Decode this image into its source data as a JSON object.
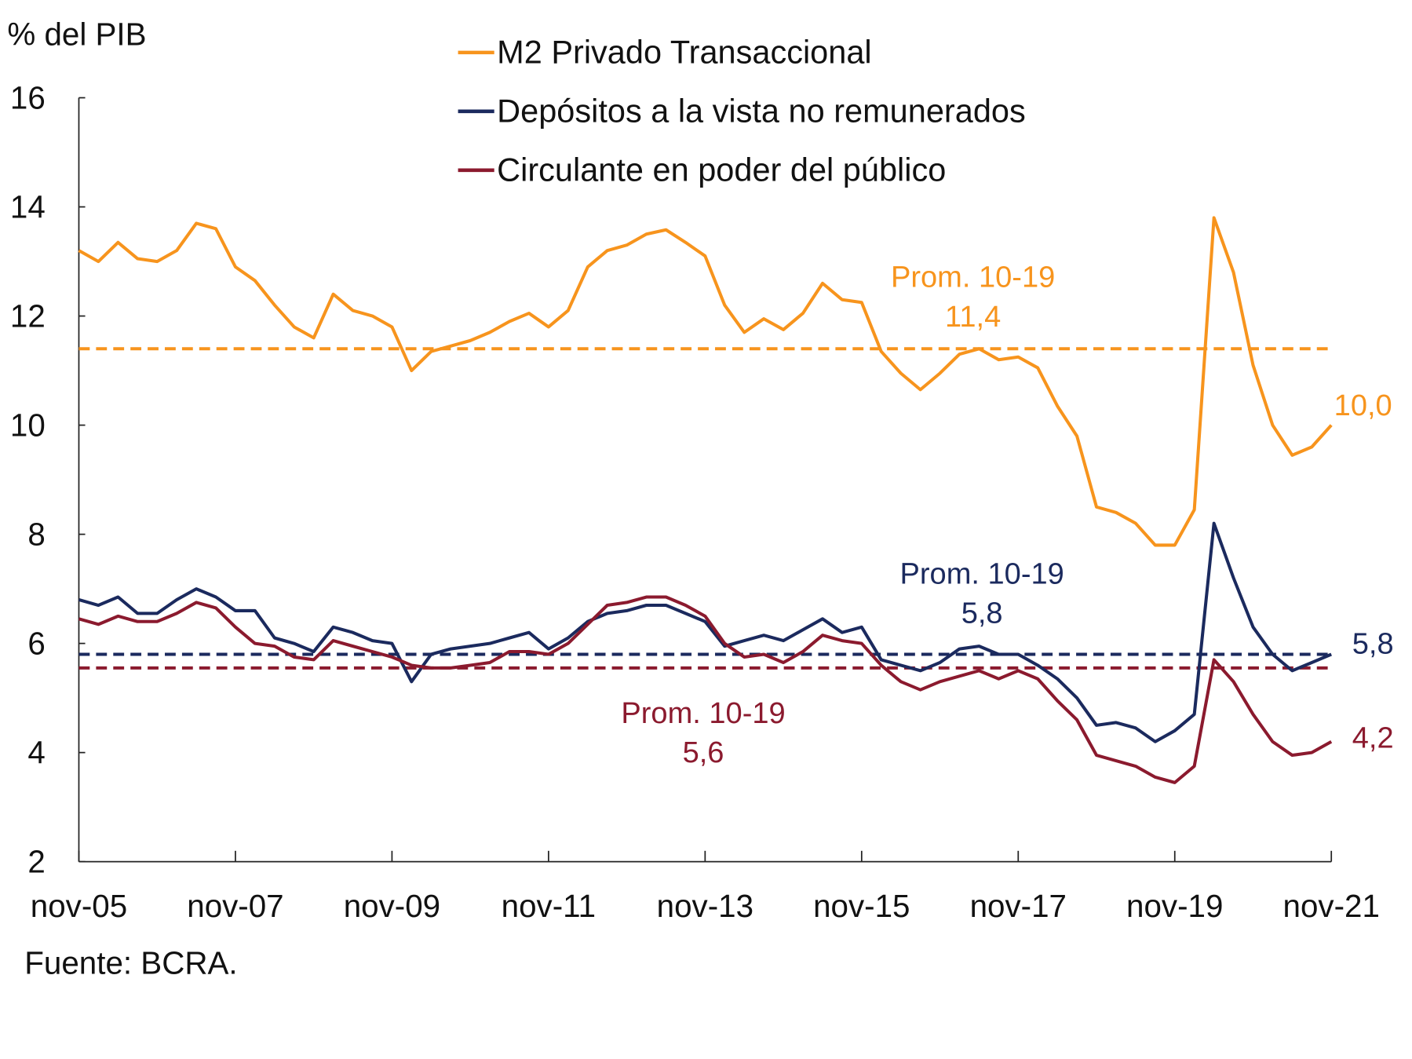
{
  "chart_data": {
    "type": "line",
    "ylabel": "% del PIB",
    "ylim": [
      2,
      16
    ],
    "yticks": [
      "2",
      "4",
      "6",
      "8",
      "10",
      "12",
      "14",
      "16"
    ],
    "xticks": [
      "nov-05",
      "nov-07",
      "nov-09",
      "nov-11",
      "nov-13",
      "nov-15",
      "nov-17",
      "nov-19",
      "nov-21"
    ],
    "xlim": [
      "2005-11",
      "2021-11"
    ],
    "grid": false,
    "legend_position": "top",
    "source": "Fuente: BCRA.",
    "x": [
      "2005-11",
      "2006-02",
      "2006-05",
      "2006-08",
      "2006-11",
      "2007-02",
      "2007-05",
      "2007-08",
      "2007-11",
      "2008-02",
      "2008-05",
      "2008-08",
      "2008-11",
      "2009-02",
      "2009-05",
      "2009-08",
      "2009-11",
      "2010-02",
      "2010-05",
      "2010-08",
      "2010-11",
      "2011-02",
      "2011-05",
      "2011-08",
      "2011-11",
      "2012-02",
      "2012-05",
      "2012-08",
      "2012-11",
      "2013-02",
      "2013-05",
      "2013-08",
      "2013-11",
      "2014-02",
      "2014-05",
      "2014-08",
      "2014-11",
      "2015-02",
      "2015-05",
      "2015-08",
      "2015-11",
      "2016-02",
      "2016-05",
      "2016-08",
      "2016-11",
      "2017-02",
      "2017-05",
      "2017-08",
      "2017-11",
      "2018-02",
      "2018-05",
      "2018-08",
      "2018-11",
      "2019-02",
      "2019-05",
      "2019-08",
      "2019-11",
      "2020-02",
      "2020-05",
      "2020-08",
      "2020-11",
      "2021-02",
      "2021-05",
      "2021-08",
      "2021-11"
    ],
    "series": [
      {
        "name": "M2 Privado Transaccional",
        "color": "#F7941D",
        "end_label": "10,0",
        "values": [
          13.2,
          13.0,
          13.35,
          13.05,
          13.0,
          13.2,
          13.7,
          13.6,
          12.9,
          12.65,
          12.2,
          11.8,
          11.6,
          12.4,
          12.1,
          12.0,
          11.8,
          11.0,
          11.35,
          11.45,
          11.55,
          11.7,
          11.9,
          12.05,
          11.8,
          12.1,
          12.9,
          13.2,
          13.3,
          13.5,
          13.58,
          13.35,
          13.1,
          12.2,
          11.7,
          11.95,
          11.75,
          12.05,
          12.6,
          12.3,
          12.25,
          11.35,
          10.95,
          10.65,
          10.95,
          11.3,
          11.4,
          11.2,
          11.25,
          11.05,
          10.35,
          9.8,
          8.5,
          8.4,
          8.2,
          7.8,
          7.8,
          8.45,
          13.8,
          12.8,
          11.1,
          10.0,
          9.45,
          9.6,
          10.0
        ],
        "average": {
          "value": 11.4,
          "label": "Prom. 10-19",
          "value_label": "11,4"
        }
      },
      {
        "name": "Depósitos a la vista no remunerados",
        "color": "#1B2A5E",
        "end_label": "5,8",
        "values": [
          6.8,
          6.7,
          6.85,
          6.55,
          6.55,
          6.8,
          7.0,
          6.85,
          6.6,
          6.6,
          6.1,
          6.0,
          5.85,
          6.3,
          6.2,
          6.05,
          6.0,
          5.3,
          5.8,
          5.9,
          5.95,
          6.0,
          6.1,
          6.2,
          5.9,
          6.1,
          6.4,
          6.55,
          6.6,
          6.7,
          6.7,
          6.55,
          6.4,
          5.95,
          6.05,
          6.15,
          6.05,
          6.25,
          6.45,
          6.2,
          6.3,
          5.7,
          5.6,
          5.5,
          5.65,
          5.9,
          5.95,
          5.8,
          5.8,
          5.6,
          5.35,
          5.0,
          4.5,
          4.55,
          4.45,
          4.2,
          4.4,
          4.7,
          8.2,
          7.2,
          6.3,
          5.8,
          5.5,
          5.65,
          5.8
        ],
        "average": {
          "value": 5.8,
          "label": "Prom. 10-19",
          "value_label": "5,8"
        }
      },
      {
        "name": "Circulante en poder del público",
        "color": "#8B1A2E",
        "end_label": "4,2",
        "values": [
          6.45,
          6.35,
          6.5,
          6.4,
          6.4,
          6.55,
          6.75,
          6.65,
          6.3,
          6.0,
          5.95,
          5.75,
          5.7,
          6.05,
          5.95,
          5.85,
          5.75,
          5.6,
          5.55,
          5.55,
          5.6,
          5.65,
          5.85,
          5.85,
          5.8,
          6.0,
          6.35,
          6.7,
          6.75,
          6.85,
          6.85,
          6.7,
          6.5,
          6.0,
          5.75,
          5.8,
          5.65,
          5.85,
          6.15,
          6.05,
          6.0,
          5.6,
          5.3,
          5.15,
          5.3,
          5.4,
          5.5,
          5.35,
          5.5,
          5.35,
          4.95,
          4.6,
          3.95,
          3.85,
          3.75,
          3.55,
          3.45,
          3.75,
          5.7,
          5.3,
          4.7,
          4.2,
          3.95,
          4.0,
          4.2
        ],
        "average": {
          "value": 5.55,
          "label": "Prom. 10-19",
          "value_label": "5,6"
        }
      }
    ]
  }
}
